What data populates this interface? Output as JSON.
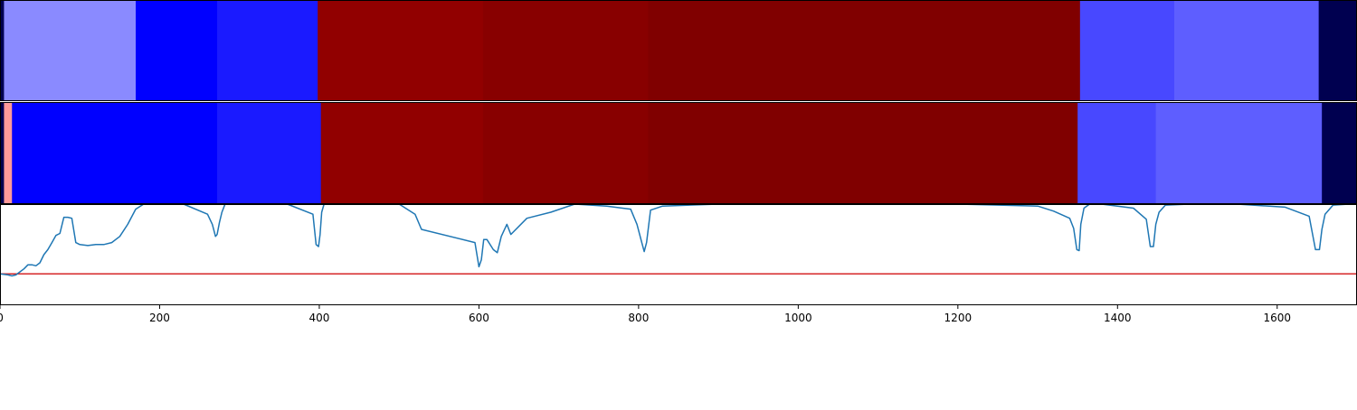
{
  "chart_data": [
    {
      "type": "heatmap",
      "xlim": [
        0,
        1700
      ],
      "segments": [
        {
          "start": 0,
          "end": 5,
          "color": "#000050"
        },
        {
          "start": 5,
          "end": 170,
          "color": "#8a8aff"
        },
        {
          "start": 170,
          "end": 272,
          "color": "#0000ff"
        },
        {
          "start": 272,
          "end": 398,
          "color": "#1a1aff"
        },
        {
          "start": 398,
          "end": 605,
          "color": "#910000"
        },
        {
          "start": 605,
          "end": 812,
          "color": "#880000"
        },
        {
          "start": 812,
          "end": 1353,
          "color": "#800000"
        },
        {
          "start": 1353,
          "end": 1471,
          "color": "#4848ff"
        },
        {
          "start": 1471,
          "end": 1652,
          "color": "#5e5eff"
        },
        {
          "start": 1652,
          "end": 1700,
          "color": "#000050"
        }
      ]
    },
    {
      "type": "heatmap",
      "xlim": [
        0,
        1700
      ],
      "segments": [
        {
          "start": 0,
          "end": 5,
          "color": "#000050"
        },
        {
          "start": 5,
          "end": 15,
          "color": "#ff9a9a"
        },
        {
          "start": 15,
          "end": 272,
          "color": "#0000ff"
        },
        {
          "start": 272,
          "end": 402,
          "color": "#1a1aff"
        },
        {
          "start": 402,
          "end": 605,
          "color": "#910000"
        },
        {
          "start": 605,
          "end": 812,
          "color": "#880000"
        },
        {
          "start": 812,
          "end": 1350,
          "color": "#800000"
        },
        {
          "start": 1350,
          "end": 1448,
          "color": "#4848ff"
        },
        {
          "start": 1448,
          "end": 1656,
          "color": "#5e5eff"
        },
        {
          "start": 1656,
          "end": 1700,
          "color": "#000050"
        }
      ]
    },
    {
      "type": "line",
      "xlim": [
        0,
        1700
      ],
      "ylim": [
        0,
        1
      ],
      "xticks": [
        0,
        200,
        400,
        600,
        800,
        1000,
        1200,
        1400,
        1600
      ],
      "xtick_labels": [
        "0",
        "200",
        "400",
        "600",
        "800",
        "1000",
        "1200",
        "1400",
        "1600"
      ],
      "series": [
        {
          "color": "#1f77b4",
          "x": [
            0,
            10,
            15,
            20,
            25,
            30,
            35,
            40,
            45,
            50,
            55,
            60,
            65,
            70,
            75,
            80,
            85,
            90,
            95,
            100,
            110,
            120,
            130,
            140,
            150,
            160,
            170,
            180,
            200,
            230,
            260,
            266,
            270,
            272,
            275,
            278,
            282,
            290,
            320,
            360,
            392,
            396,
            399,
            401,
            403,
            406,
            420,
            460,
            500,
            520,
            528,
            595,
            600,
            603,
            606,
            610,
            618,
            623,
            628,
            635,
            640,
            660,
            690,
            720,
            760,
            790,
            798,
            804,
            807,
            810,
            815,
            830,
            900,
            1000,
            1100,
            1200,
            1300,
            1320,
            1340,
            1345,
            1349,
            1352,
            1354,
            1358,
            1365,
            1380,
            1420,
            1436,
            1441,
            1445,
            1448,
            1452,
            1460,
            1490,
            1550,
            1610,
            1640,
            1648,
            1653,
            1656,
            1660,
            1670,
            1690,
            1700
          ],
          "y": [
            0.31,
            0.3,
            0.29,
            0.3,
            0.33,
            0.36,
            0.4,
            0.4,
            0.39,
            0.42,
            0.5,
            0.55,
            0.62,
            0.69,
            0.71,
            0.87,
            0.87,
            0.86,
            0.62,
            0.6,
            0.59,
            0.6,
            0.6,
            0.62,
            0.68,
            0.8,
            0.95,
            1.0,
            1.0,
            1.0,
            0.9,
            0.8,
            0.68,
            0.7,
            0.82,
            0.92,
            1.0,
            1.0,
            1.0,
            1.0,
            0.9,
            0.6,
            0.58,
            0.7,
            0.92,
            1.0,
            1.0,
            1.0,
            1.0,
            0.9,
            0.75,
            0.62,
            0.38,
            0.45,
            0.65,
            0.65,
            0.55,
            0.52,
            0.68,
            0.8,
            0.7,
            0.86,
            0.92,
            1.0,
            0.98,
            0.95,
            0.8,
            0.62,
            0.53,
            0.62,
            0.94,
            0.98,
            1.0,
            1.0,
            1.0,
            1.0,
            0.98,
            0.93,
            0.86,
            0.76,
            0.55,
            0.54,
            0.8,
            0.96,
            1.0,
            1.0,
            0.96,
            0.85,
            0.58,
            0.58,
            0.8,
            0.92,
            0.99,
            1.0,
            1.0,
            0.97,
            0.88,
            0.55,
            0.55,
            0.75,
            0.9,
            0.99,
            1.0,
            1.0
          ]
        }
      ],
      "hline": {
        "y": 0.31,
        "color": "#d62728"
      }
    }
  ]
}
